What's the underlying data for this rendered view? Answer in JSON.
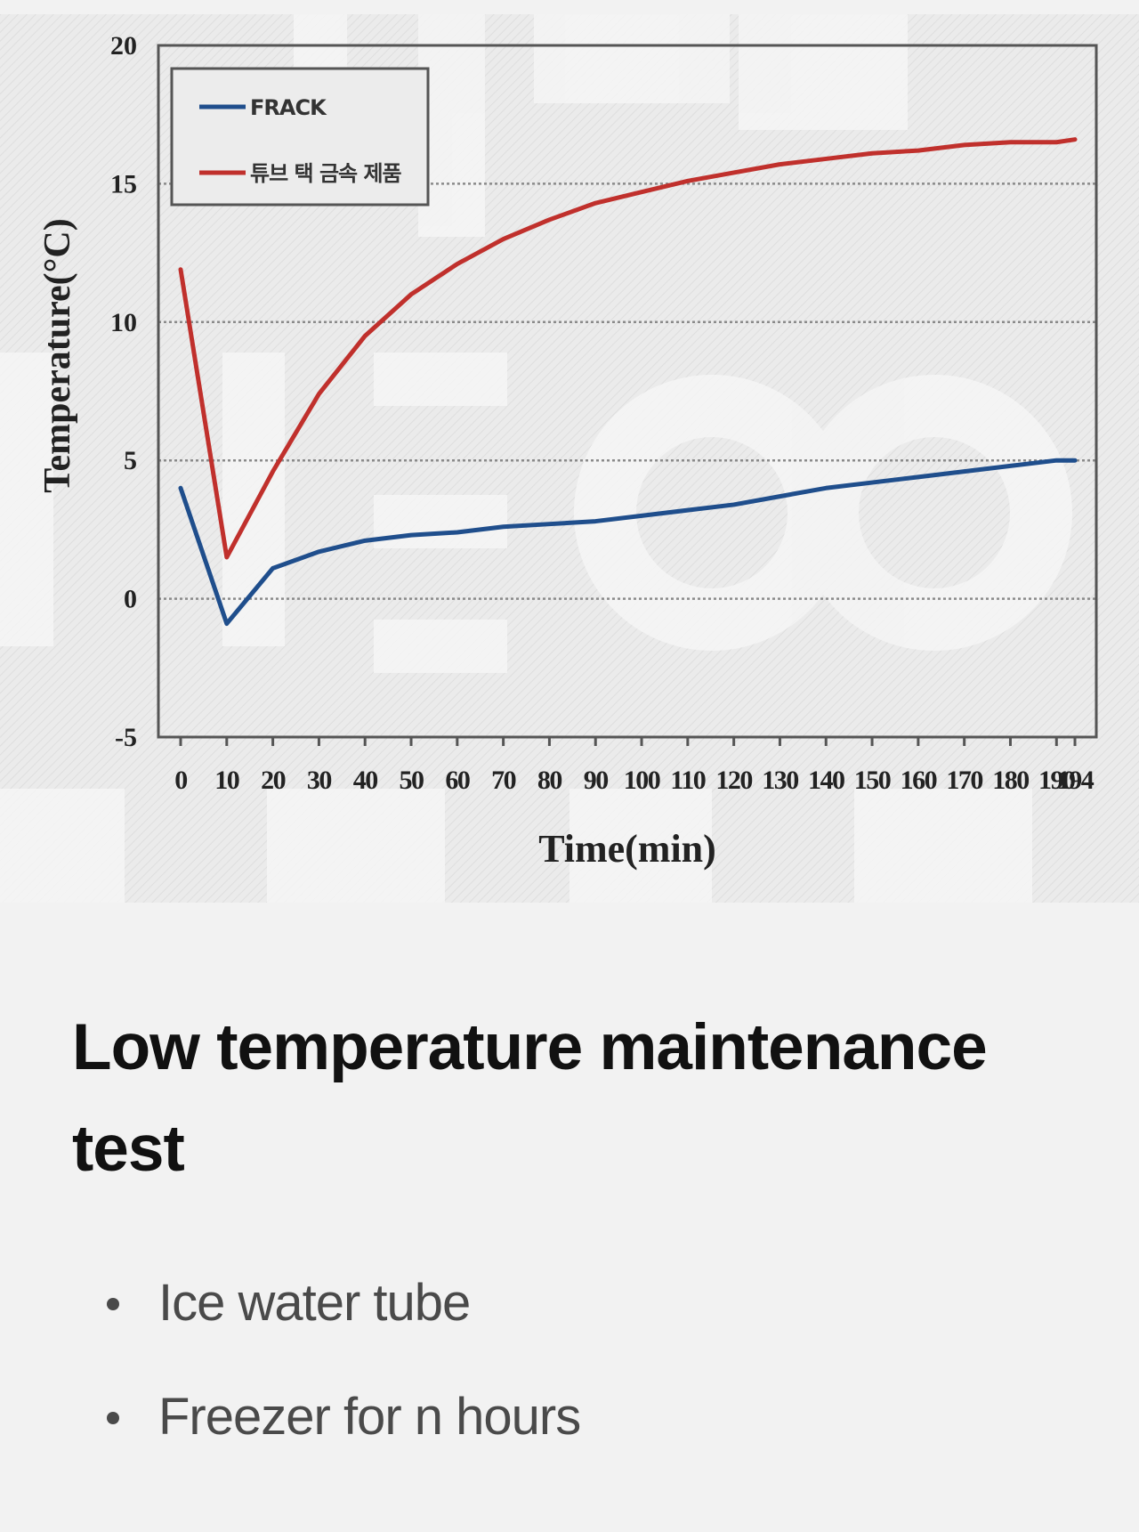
{
  "chart_data": {
    "type": "line",
    "title": "",
    "xlabel": "Time(min)",
    "ylabel": "Temperature(°C)",
    "ylim": [
      -5,
      20
    ],
    "yticks": [
      "-5",
      "0",
      "5",
      "10",
      "15",
      "20"
    ],
    "x_ticks": [
      "0",
      "10",
      "20",
      "30",
      "40",
      "50",
      "60",
      "70",
      "80",
      "90",
      "100",
      "110",
      "120",
      "130",
      "140",
      "150",
      "160",
      "170",
      "180",
      "190",
      "194"
    ],
    "x": [
      0,
      10,
      20,
      30,
      40,
      50,
      60,
      70,
      80,
      90,
      100,
      110,
      120,
      130,
      140,
      150,
      160,
      170,
      180,
      190,
      194
    ],
    "grid": "horizontal dotted",
    "legend_position": "top-left",
    "series": [
      {
        "name": "FRACK",
        "color": "#1f4e8c",
        "values": [
          4,
          -0.9,
          1.1,
          1.7,
          2.1,
          2.3,
          2.4,
          2.6,
          2.7,
          2.8,
          3.0,
          3.2,
          3.4,
          3.7,
          4.0,
          4.2,
          4.4,
          4.6,
          4.8,
          5.0,
          5.0
        ]
      },
      {
        "name": "튜브 택 금속 제품",
        "color": "#c0302c",
        "values": [
          11.9,
          1.5,
          4.6,
          7.4,
          9.5,
          11.0,
          12.1,
          13.0,
          13.7,
          14.3,
          14.7,
          15.1,
          15.4,
          15.7,
          15.9,
          16.1,
          16.2,
          16.4,
          16.5,
          16.5,
          16.6
        ]
      }
    ]
  },
  "card": {
    "title": "Low temperature maintenance test",
    "bullets": [
      "Ice water tube",
      "Freezer for n hours"
    ]
  }
}
